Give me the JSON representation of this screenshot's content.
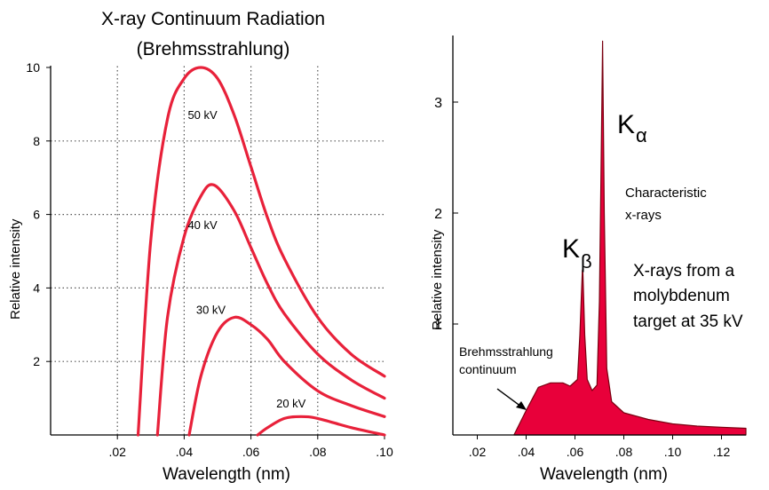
{
  "chart_data": [
    {
      "type": "line",
      "title": "X-ray Continuum Radiation",
      "subtitle": "(Brehmsstrahlung)",
      "xlabel": "Wavelength (nm)",
      "ylabel": "Relative intensity",
      "xlim": [
        0,
        0.1
      ],
      "ylim": [
        0,
        10
      ],
      "x_tick_labels": [
        ".02",
        ".04",
        ".06",
        ".08",
        ".10"
      ],
      "x_ticks": [
        0.02,
        0.04,
        0.06,
        0.08,
        0.1
      ],
      "y_tick_labels": [
        "2",
        "4",
        "6",
        "8",
        "10"
      ],
      "y_ticks": [
        2,
        4,
        6,
        8,
        10
      ],
      "grid": "dotted at x=.02,.04,.06,.08 and y=2,4,6,8",
      "series_color": "#e8213a",
      "series": [
        {
          "name": "50 kV",
          "x": [
            0.0262,
            0.03,
            0.035,
            0.04,
            0.045,
            0.05,
            0.055,
            0.06,
            0.065,
            0.07,
            0.08,
            0.09,
            0.1
          ],
          "values": [
            0,
            5.3,
            8.6,
            9.7,
            10.0,
            9.7,
            8.7,
            7.3,
            5.9,
            4.8,
            3.2,
            2.2,
            1.6
          ]
        },
        {
          "name": "40 kV",
          "x": [
            0.032,
            0.035,
            0.04,
            0.045,
            0.049,
            0.055,
            0.06,
            0.065,
            0.07,
            0.08,
            0.09,
            0.1
          ],
          "values": [
            0,
            3.2,
            5.4,
            6.5,
            6.8,
            6.1,
            5.1,
            4.1,
            3.3,
            2.2,
            1.5,
            1.0
          ]
        },
        {
          "name": "30 kV",
          "x": [
            0.0415,
            0.045,
            0.05,
            0.055,
            0.06,
            0.065,
            0.07,
            0.08,
            0.09,
            0.1
          ],
          "values": [
            0,
            1.6,
            2.8,
            3.2,
            3.0,
            2.6,
            2.0,
            1.2,
            0.8,
            0.5
          ]
        },
        {
          "name": "20 kV",
          "x": [
            0.062,
            0.065,
            0.07,
            0.075,
            0.08,
            0.09,
            0.1
          ],
          "values": [
            0,
            0.2,
            0.45,
            0.5,
            0.45,
            0.2,
            0.0
          ]
        }
      ]
    },
    {
      "type": "area",
      "xlabel": "Wavelength (nm)",
      "ylabel": "Relative intensity",
      "xlim": [
        0.01,
        0.13
      ],
      "ylim": [
        0,
        3.6
      ],
      "x_tick_labels": [
        ".02",
        ".04",
        ".06",
        ".08",
        ".10",
        ".12"
      ],
      "x_ticks": [
        0.02,
        0.04,
        0.06,
        0.08,
        0.1,
        0.12
      ],
      "y_tick_labels": [
        "1",
        "2",
        "3"
      ],
      "y_ticks": [
        1,
        2,
        3
      ],
      "grid": "off",
      "fill_color": "#e8003a",
      "x": [
        0.035,
        0.04,
        0.045,
        0.05,
        0.055,
        0.058,
        0.061,
        0.062,
        0.063,
        0.0632,
        0.064,
        0.065,
        0.067,
        0.069,
        0.07,
        0.071,
        0.0713,
        0.072,
        0.073,
        0.075,
        0.08,
        0.09,
        0.1,
        0.11,
        0.12,
        0.13
      ],
      "values": [
        0,
        0.22,
        0.43,
        0.47,
        0.47,
        0.44,
        0.5,
        0.9,
        1.48,
        1.5,
        0.9,
        0.5,
        0.4,
        0.45,
        1.2,
        3.0,
        3.55,
        2.0,
        0.6,
        0.3,
        0.2,
        0.14,
        0.1,
        0.08,
        0.07,
        0.06
      ],
      "annotations": {
        "k_alpha": "K",
        "k_alpha_sub": "α",
        "k_beta": "K",
        "k_beta_sub": "β",
        "characteristic": [
          "Characteristic",
          "x-rays"
        ],
        "continuum": [
          "Brehmsstrahlung",
          "continuum"
        ],
        "target": [
          "X-rays from a",
          "molybdenum",
          "target at 35 kV"
        ]
      }
    }
  ]
}
